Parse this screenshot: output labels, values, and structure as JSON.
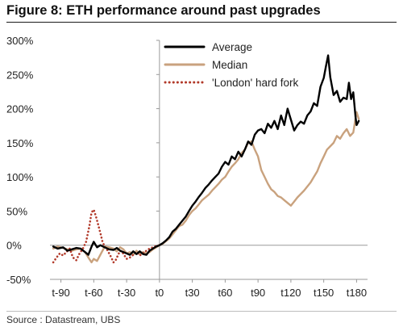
{
  "figure": {
    "title": "Figure 8: ETH performance around past upgrades",
    "source": "Source : Datastream, UBS"
  },
  "colors": {
    "average": "#000000",
    "median": "#c9a27e",
    "london": "#b23a2a",
    "axis": "#9a9a9a"
  },
  "chart_data": {
    "type": "line",
    "title": "Figure 8: ETH performance around past upgrades",
    "xlabel": "",
    "ylabel": "",
    "xlim": [
      -100,
      190
    ],
    "ylim": [
      -50,
      300
    ],
    "x_ticks": [
      -90,
      -60,
      -30,
      0,
      30,
      60,
      90,
      120,
      150,
      180
    ],
    "x_tick_labels": [
      "t-90",
      "t-60",
      "t-30",
      "t0",
      "t30",
      "t60",
      "t90",
      "t120",
      "t150",
      "t180"
    ],
    "y_ticks": [
      -50,
      0,
      50,
      100,
      150,
      200,
      250,
      300
    ],
    "y_tick_labels": [
      "-50%",
      "0%",
      "50%",
      "100%",
      "150%",
      "200%",
      "250%",
      "300%"
    ],
    "legend_position": "top-right",
    "series": [
      {
        "name": "Average",
        "color": "#000000",
        "style": "solid",
        "x": [
          -97,
          -93,
          -88,
          -84,
          -80,
          -76,
          -72,
          -68,
          -65,
          -62,
          -60,
          -57,
          -54,
          -50,
          -46,
          -42,
          -39,
          -36,
          -33,
          -30,
          -27,
          -24,
          -21,
          -18,
          -15,
          -12,
          -9,
          -6,
          -3,
          0,
          3,
          6,
          9,
          12,
          15,
          18,
          21,
          24,
          27,
          30,
          33,
          36,
          39,
          42,
          45,
          48,
          51,
          54,
          57,
          60,
          63,
          66,
          69,
          72,
          75,
          78,
          81,
          84,
          87,
          90,
          93,
          96,
          99,
          102,
          105,
          108,
          111,
          114,
          117,
          120,
          123,
          126,
          129,
          132,
          135,
          138,
          141,
          144,
          147,
          150,
          152,
          154,
          156,
          159,
          162,
          165,
          168,
          171,
          173,
          175,
          177,
          179,
          180,
          182
        ],
        "y": [
          -2,
          -5,
          -3,
          -8,
          -6,
          -4,
          -5,
          -10,
          -14,
          -2,
          5,
          -3,
          0,
          -3,
          -6,
          -7,
          -4,
          -8,
          -10,
          -12,
          -14,
          -9,
          -13,
          -9,
          -13,
          -14,
          -8,
          -5,
          -2,
          0,
          3,
          7,
          12,
          20,
          24,
          30,
          36,
          42,
          50,
          58,
          64,
          71,
          77,
          84,
          89,
          95,
          100,
          105,
          115,
          122,
          118,
          130,
          126,
          137,
          130,
          140,
          152,
          147,
          162,
          168,
          170,
          164,
          178,
          172,
          182,
          170,
          190,
          176,
          200,
          184,
          168,
          176,
          181,
          178,
          190,
          196,
          208,
          204,
          232,
          245,
          262,
          278,
          246,
          220,
          226,
          210,
          216,
          214,
          238,
          214,
          224,
          188,
          176,
          182
        ]
      },
      {
        "name": "Median",
        "color": "#c9a27e",
        "style": "solid",
        "x": [
          -97,
          -93,
          -88,
          -84,
          -80,
          -76,
          -72,
          -68,
          -65,
          -62,
          -60,
          -57,
          -54,
          -50,
          -46,
          -42,
          -39,
          -36,
          -33,
          -30,
          -27,
          -24,
          -21,
          -18,
          -15,
          -12,
          -9,
          -6,
          -3,
          0,
          3,
          6,
          9,
          12,
          15,
          18,
          21,
          24,
          27,
          30,
          33,
          36,
          39,
          42,
          45,
          48,
          51,
          54,
          57,
          60,
          63,
          66,
          69,
          72,
          75,
          78,
          81,
          84,
          87,
          90,
          93,
          96,
          99,
          102,
          105,
          108,
          111,
          114,
          117,
          120,
          123,
          126,
          129,
          132,
          135,
          138,
          141,
          144,
          147,
          150,
          153,
          156,
          159,
          162,
          165,
          168,
          171,
          174,
          177,
          180,
          182
        ],
        "y": [
          -5,
          -2,
          -4,
          -6,
          -8,
          -6,
          -5,
          -10,
          -18,
          -25,
          -20,
          -23,
          -14,
          -2,
          -3,
          -5,
          -9,
          -3,
          -6,
          -12,
          -10,
          -14,
          -8,
          -13,
          -10,
          -12,
          -10,
          -6,
          -3,
          0,
          2,
          6,
          10,
          16,
          22,
          28,
          30,
          36,
          44,
          50,
          54,
          60,
          66,
          70,
          74,
          80,
          85,
          90,
          96,
          100,
          108,
          115,
          120,
          126,
          135,
          140,
          150,
          152,
          140,
          130,
          110,
          100,
          90,
          82,
          78,
          72,
          70,
          66,
          62,
          58,
          64,
          70,
          75,
          80,
          86,
          92,
          100,
          108,
          120,
          130,
          140,
          145,
          150,
          160,
          156,
          164,
          170,
          160,
          165,
          195,
          185
        ]
      },
      {
        "name": "'London' hard fork",
        "color": "#b23a2a",
        "style": "dotted",
        "x": [
          -97,
          -94,
          -91,
          -88,
          -85,
          -82,
          -79,
          -76,
          -73,
          -70,
          -67,
          -64,
          -62,
          -60,
          -58,
          -56,
          -54,
          -52,
          -50,
          -48,
          -46,
          -44,
          -42,
          -40,
          -38,
          -36,
          -34,
          -32,
          -30,
          -27,
          -24,
          -21,
          -18,
          -15,
          -12,
          -9,
          -6,
          -3,
          0
        ],
        "y": [
          -25,
          -18,
          -12,
          -15,
          -10,
          -5,
          -18,
          -22,
          -12,
          -5,
          5,
          28,
          48,
          52,
          42,
          30,
          18,
          5,
          -2,
          -6,
          -12,
          -18,
          -25,
          -22,
          -15,
          -8,
          -10,
          -15,
          -20,
          -18,
          -14,
          -10,
          -15,
          -12,
          -8,
          -5,
          -3,
          -1,
          0
        ]
      }
    ]
  }
}
